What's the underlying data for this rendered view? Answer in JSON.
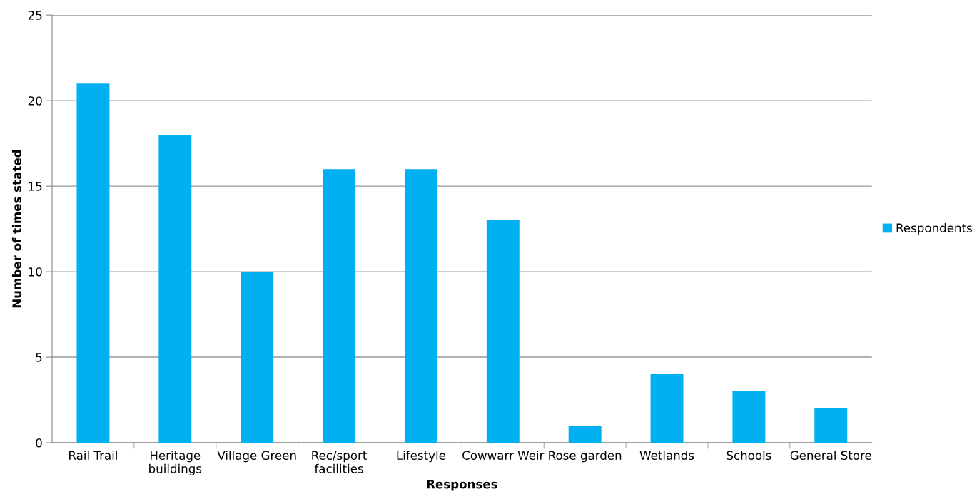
{
  "chart_data": {
    "type": "bar",
    "xlabel": "Responses",
    "ylabel": "Number of times stated",
    "categories": [
      "Rail Trail",
      "Heritage\nbuildings",
      "Village Green",
      "Rec/sport\nfacilities",
      "Lifestyle",
      "Cowwarr Weir",
      "Rose garden",
      "Wetlands",
      "Schools",
      "General Store"
    ],
    "series": [
      {
        "name": "Respondents",
        "color": "#00b0f0",
        "values": [
          21,
          18,
          10,
          16,
          16,
          13,
          1,
          4,
          3,
          2
        ]
      }
    ],
    "ylim": [
      0,
      25
    ],
    "yticks": [
      0,
      5,
      10,
      15,
      20,
      25
    ],
    "grid": "y",
    "legend": "right"
  }
}
